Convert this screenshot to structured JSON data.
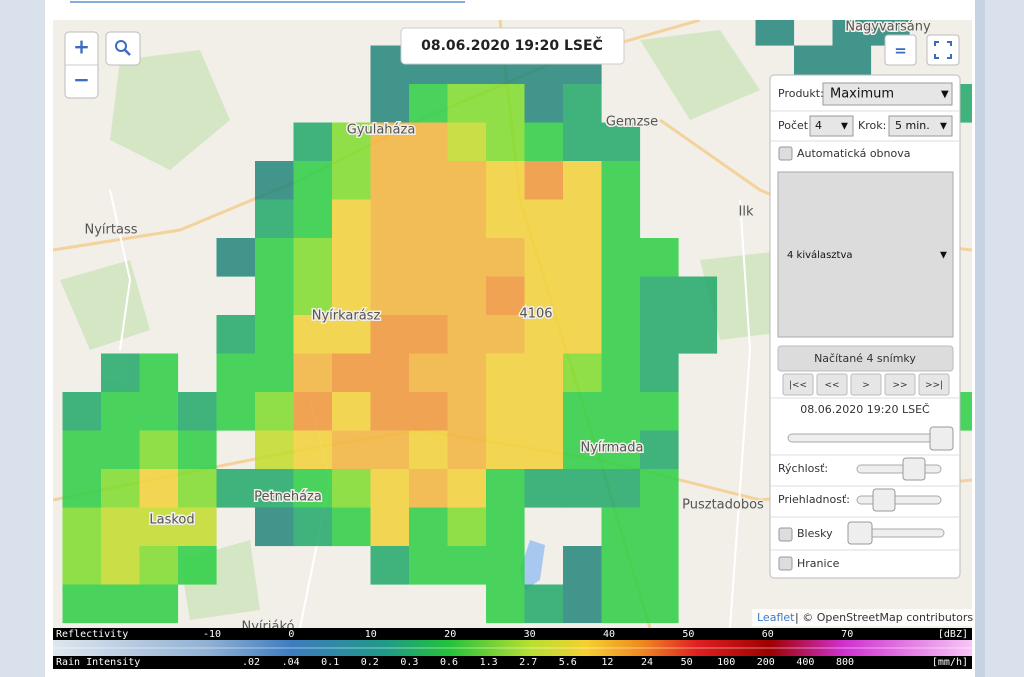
{
  "map": {
    "timestamp": "08.06.2020 19:20 LSEČ",
    "zoom_in": "+",
    "zoom_out": "−",
    "layers_button": "=",
    "labels": [
      "Nagyvarsány",
      "Gyulaháza",
      "Gemzse",
      "Nyírtass",
      "Ilk",
      "Nyírkarász",
      "4106",
      "Nyírmada",
      "Petneháza",
      "Laskod",
      "Pusztadobos",
      "Nyíriákó"
    ],
    "attribution": {
      "link": "Leaflet",
      "text": "| © OpenStreetMap contributors"
    }
  },
  "panel": {
    "product_label": "Produkt:",
    "product_value": "Maximum",
    "count_label": "Počet:",
    "count_value": "4",
    "step_label": "Krok:",
    "step_value": "5 min.",
    "auto_refresh": "Automatická obnova",
    "selection": "4 kiválasztva",
    "loaded_button": "Načítané 4 snímky",
    "nav_buttons": [
      "|<<",
      "<<",
      ">",
      ">>",
      ">>|"
    ],
    "current_time": "08.06.2020 19:20 LSEČ",
    "speed_label": "Rýchlosť:",
    "opacity_label": "Priehladnosť:",
    "lightning_label": "Blesky",
    "borders_label": "Hranice"
  },
  "legend": {
    "reflectivity": {
      "title": "Reflectivity",
      "ticks": [
        "-10",
        "0",
        "10",
        "20",
        "30",
        "40",
        "50",
        "60",
        "70"
      ],
      "unit": "[dBZ]"
    },
    "rain": {
      "title": "Rain Intensity",
      "ticks": [
        ".02",
        ".04",
        "0.1",
        "0.2",
        "0.3",
        "0.6",
        "1.3",
        "2.7",
        "5.6",
        "12",
        "24",
        "50",
        "100",
        "200",
        "400",
        "800"
      ],
      "unit": "[mm/h]"
    }
  }
}
